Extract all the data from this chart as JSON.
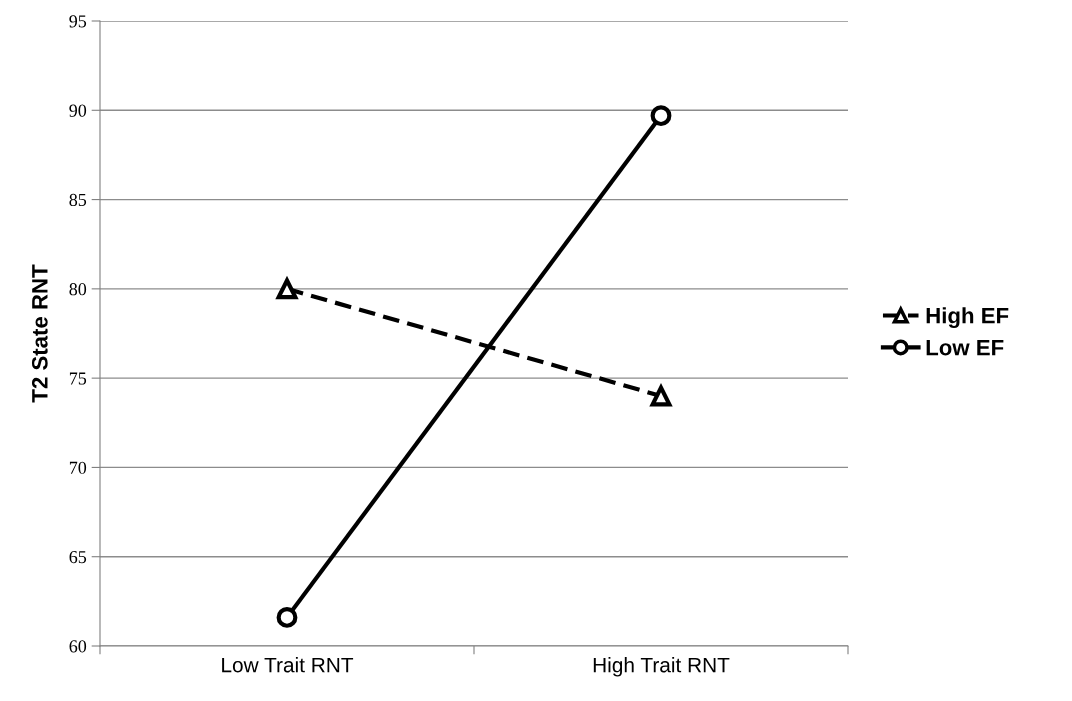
{
  "chart_data": {
    "type": "line",
    "ylabel": "T2 State RNT",
    "categories": [
      "Low Trait RNT",
      "High Trait RNT"
    ],
    "series": [
      {
        "name": "High EF",
        "color": "#000000",
        "values": [
          80,
          74
        ],
        "marker": "triangle",
        "line_style": "dashed"
      },
      {
        "name": "Low EF",
        "color": "#000000",
        "values": [
          61.6,
          89.7
        ],
        "marker": "circle",
        "line_style": "solid"
      }
    ],
    "ylim": [
      60,
      95
    ],
    "yticks": [
      60,
      65,
      70,
      75,
      80,
      85,
      90,
      95
    ],
    "grid": "y",
    "legend": "right"
  }
}
